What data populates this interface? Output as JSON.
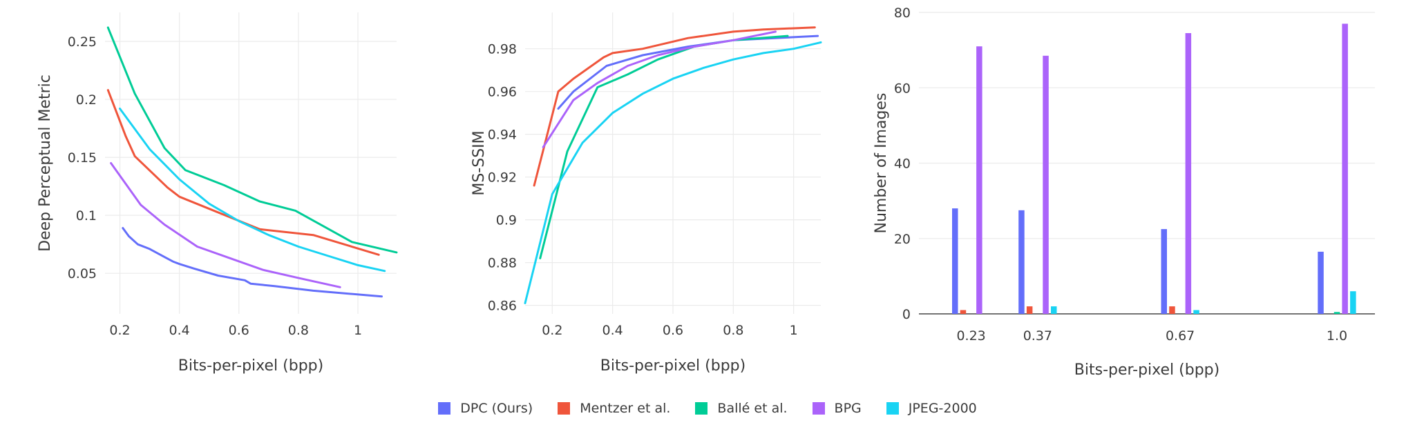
{
  "legend": {
    "items": [
      {
        "label": "DPC (Ours)",
        "color": "#636efa"
      },
      {
        "label": "Mentzer et al.",
        "color": "#ef553b"
      },
      {
        "label": "Ballé et al.",
        "color": "#00cc96"
      },
      {
        "label": "BPG",
        "color": "#ab63fa"
      },
      {
        "label": "JPEG-2000",
        "color": "#19d3f3"
      }
    ]
  },
  "chart_data": [
    {
      "type": "line",
      "xlabel": "Bits-per-pixel (bpp)",
      "ylabel": "Deep Perceptual Metric",
      "xlim": [
        0.15,
        1.13
      ],
      "ylim": [
        0.015,
        0.275
      ],
      "xticks": [
        "0.2",
        "0.4",
        "0.6",
        "0.8",
        "1"
      ],
      "yticks": [
        "0.05",
        "0.1",
        "0.15",
        "0.2",
        "0.25"
      ],
      "grid": true,
      "series": [
        {
          "name": "DPC (Ours)",
          "color": "#636efa",
          "x": [
            0.21,
            0.23,
            0.26,
            0.3,
            0.35,
            0.38,
            0.4,
            0.45,
            0.53,
            0.62,
            0.64,
            0.72,
            0.85,
            1.08
          ],
          "y": [
            0.089,
            0.082,
            0.075,
            0.071,
            0.064,
            0.06,
            0.058,
            0.054,
            0.048,
            0.044,
            0.041,
            0.039,
            0.035,
            0.03
          ]
        },
        {
          "name": "Mentzer et al.",
          "color": "#ef553b",
          "x": [
            0.16,
            0.22,
            0.25,
            0.36,
            0.4,
            0.67,
            0.85,
            1.07
          ],
          "y": [
            0.208,
            0.168,
            0.151,
            0.124,
            0.116,
            0.088,
            0.083,
            0.066
          ]
        },
        {
          "name": "Ballé et al.",
          "color": "#00cc96",
          "x": [
            0.16,
            0.25,
            0.35,
            0.42,
            0.55,
            0.67,
            0.79,
            0.98,
            1.13
          ],
          "y": [
            0.262,
            0.205,
            0.158,
            0.139,
            0.126,
            0.112,
            0.104,
            0.077,
            0.068
          ]
        },
        {
          "name": "BPG",
          "color": "#ab63fa",
          "x": [
            0.17,
            0.27,
            0.35,
            0.46,
            0.57,
            0.68,
            0.8,
            0.94
          ],
          "y": [
            0.145,
            0.109,
            0.092,
            0.073,
            0.063,
            0.053,
            0.046,
            0.038
          ]
        },
        {
          "name": "JPEG-2000",
          "color": "#19d3f3",
          "x": [
            0.2,
            0.3,
            0.4,
            0.5,
            0.6,
            0.7,
            0.8,
            0.9,
            1.0,
            1.09
          ],
          "y": [
            0.192,
            0.157,
            0.131,
            0.11,
            0.095,
            0.083,
            0.073,
            0.065,
            0.057,
            0.052
          ]
        }
      ]
    },
    {
      "type": "line",
      "xlabel": "Bits-per-pixel (bpp)",
      "ylabel": "MS-SSIM",
      "xlim": [
        0.11,
        1.09
      ],
      "ylim": [
        0.856,
        0.997
      ],
      "xticks": [
        "0.2",
        "0.4",
        "0.6",
        "0.8",
        "1"
      ],
      "yticks": [
        "0.86",
        "0.88",
        "0.9",
        "0.92",
        "0.94",
        "0.96",
        "0.98"
      ],
      "grid": true,
      "series": [
        {
          "name": "DPC (Ours)",
          "color": "#636efa",
          "x": [
            0.22,
            0.27,
            0.38,
            0.5,
            0.65,
            0.8,
            1.08
          ],
          "y": [
            0.952,
            0.96,
            0.972,
            0.977,
            0.981,
            0.984,
            0.986
          ]
        },
        {
          "name": "Mentzer et al.",
          "color": "#ef553b",
          "x": [
            0.14,
            0.22,
            0.27,
            0.37,
            0.4,
            0.5,
            0.65,
            0.8,
            0.9,
            1.07
          ],
          "y": [
            0.916,
            0.96,
            0.966,
            0.976,
            0.978,
            0.98,
            0.985,
            0.988,
            0.989,
            0.99
          ]
        },
        {
          "name": "Ballé et al.",
          "color": "#00cc96",
          "x": [
            0.16,
            0.25,
            0.35,
            0.45,
            0.55,
            0.67,
            0.8,
            0.98
          ],
          "y": [
            0.882,
            0.932,
            0.962,
            0.968,
            0.975,
            0.981,
            0.984,
            0.986
          ]
        },
        {
          "name": "BPG",
          "color": "#ab63fa",
          "x": [
            0.17,
            0.27,
            0.35,
            0.45,
            0.55,
            0.67,
            0.8,
            0.94
          ],
          "y": [
            0.934,
            0.956,
            0.964,
            0.972,
            0.977,
            0.981,
            0.984,
            0.988
          ]
        },
        {
          "name": "JPEG-2000",
          "color": "#19d3f3",
          "x": [
            0.11,
            0.2,
            0.3,
            0.4,
            0.5,
            0.6,
            0.7,
            0.8,
            0.9,
            1.0,
            1.09
          ],
          "y": [
            0.861,
            0.912,
            0.936,
            0.95,
            0.959,
            0.966,
            0.971,
            0.975,
            0.978,
            0.98,
            0.983
          ]
        }
      ]
    },
    {
      "type": "bar",
      "xlabel": "Bits-per-pixel (bpp)",
      "ylabel": "Number of Images",
      "x": [
        0.23,
        0.37,
        0.67,
        1.0
      ],
      "categories": [
        "0.23",
        "0.37",
        "0.67",
        "1.0"
      ],
      "xlim": [
        0.12,
        1.08
      ],
      "ylim": [
        0,
        80
      ],
      "yticks": [
        "0",
        "20",
        "40",
        "60",
        "80"
      ],
      "grid": true,
      "series": [
        {
          "name": "DPC (Ours)",
          "color": "#636efa",
          "values": [
            28,
            27.5,
            22.5,
            16.5
          ]
        },
        {
          "name": "Mentzer et al.",
          "color": "#ef553b",
          "values": [
            1,
            2,
            2,
            0
          ]
        },
        {
          "name": "Ballé et al.",
          "color": "#00cc96",
          "values": [
            0,
            0,
            0,
            0.5
          ]
        },
        {
          "name": "BPG",
          "color": "#ab63fa",
          "values": [
            71,
            68.5,
            74.5,
            77
          ]
        },
        {
          "name": "JPEG-2000",
          "color": "#19d3f3",
          "values": [
            0,
            2,
            1,
            6
          ]
        }
      ]
    }
  ]
}
